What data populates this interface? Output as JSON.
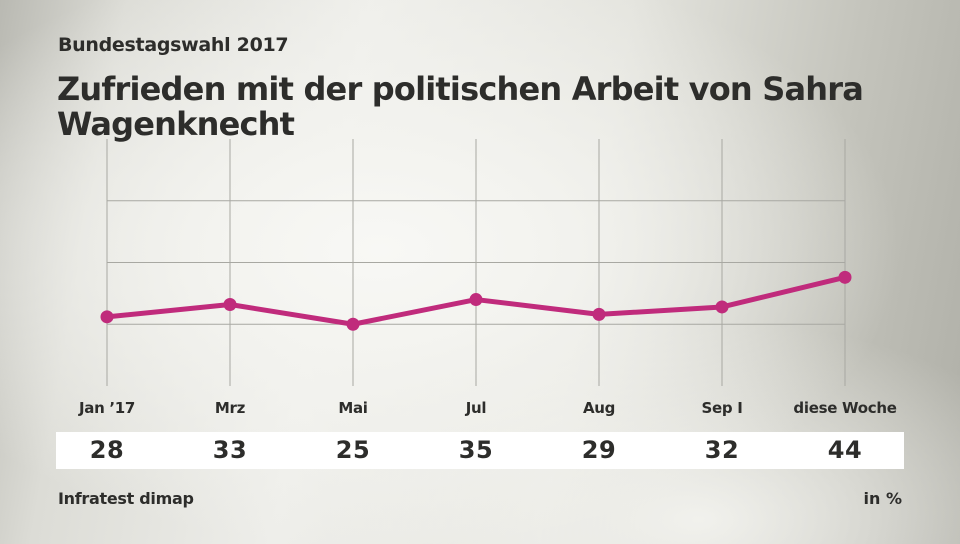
{
  "header": {
    "subtitle": "Bundestagswahl 2017",
    "title": "Zufrieden mit der politischen Arbeit von Sahra Wagenknecht"
  },
  "footer": {
    "source": "Infratest dimap",
    "unit": "in %"
  },
  "colors": {
    "line": "#c02b7c",
    "grid": "#a8a8a2",
    "text": "#2d2d2b",
    "value_band": "#ffffff"
  },
  "chart_data": {
    "type": "line",
    "title": "Zufrieden mit der politischen Arbeit von Sahra Wagenknecht",
    "subtitle": "Bundestagswahl 2017",
    "xlabel": "",
    "ylabel": "in %",
    "categories": [
      "Jan ’17",
      "Mrz",
      "Mai",
      "Jul",
      "Aug",
      "Sep I",
      "diese Woche"
    ],
    "series": [
      {
        "name": "Sahra Wagenknecht",
        "values": [
          28,
          33,
          25,
          35,
          29,
          32,
          44
        ]
      }
    ],
    "ylim": [
      0,
      100
    ],
    "gridlines_y": [
      25,
      50,
      75
    ],
    "grid": true,
    "legend": "none",
    "source": "Infratest dimap"
  }
}
